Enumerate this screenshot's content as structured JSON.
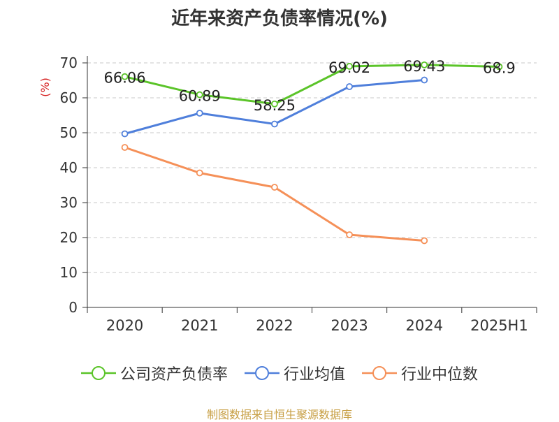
{
  "chart_data": {
    "type": "line",
    "title": "近年来资产负债率情况(%)",
    "ylabel": "(%)",
    "xlabel": "",
    "categories": [
      "2020",
      "2021",
      "2022",
      "2023",
      "2024",
      "2025H1"
    ],
    "ylim": [
      0,
      70
    ],
    "yticks": [
      0,
      10,
      20,
      30,
      40,
      50,
      60,
      70
    ],
    "grid": "horizontal-dashed",
    "legend_position": "bottom",
    "series": [
      {
        "name": "公司资产负债率",
        "color": "#5bc429",
        "values": [
          66.06,
          60.89,
          58.25,
          69.02,
          69.43,
          68.9
        ],
        "labels": [
          "66.06",
          "60.89",
          "58.25",
          "69.02",
          "69.43",
          "68.9"
        ]
      },
      {
        "name": "行业均值",
        "color": "#4f7fdb",
        "values": [
          49.7,
          55.6,
          52.5,
          63.2,
          65.1,
          null
        ]
      },
      {
        "name": "行业中位数",
        "color": "#f59058",
        "values": [
          45.8,
          38.5,
          34.4,
          20.8,
          19.1,
          null
        ]
      }
    ]
  },
  "footer": "制图数据来自恒生聚源数据库"
}
